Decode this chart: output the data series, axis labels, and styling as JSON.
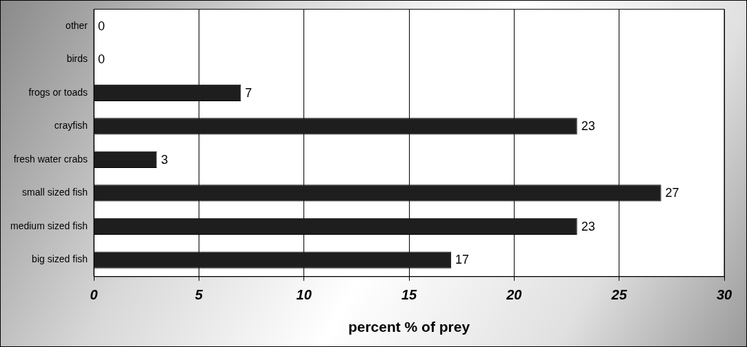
{
  "chart_data": {
    "type": "bar",
    "orientation": "horizontal",
    "xlabel": "percent % of prey",
    "categories": [
      "other",
      "birds",
      "frogs or toads",
      "crayfish",
      "fresh water crabs",
      "small sized fish",
      "medium sized fish",
      "big sized fish"
    ],
    "values": [
      0,
      0,
      7,
      23,
      3,
      27,
      23,
      17
    ],
    "color": "#1e1e1e",
    "xlim": [
      0,
      30
    ],
    "xticks": [
      0,
      5,
      10,
      15,
      20,
      25,
      30
    ],
    "grid": "x",
    "legend": false,
    "data_labels": true
  }
}
